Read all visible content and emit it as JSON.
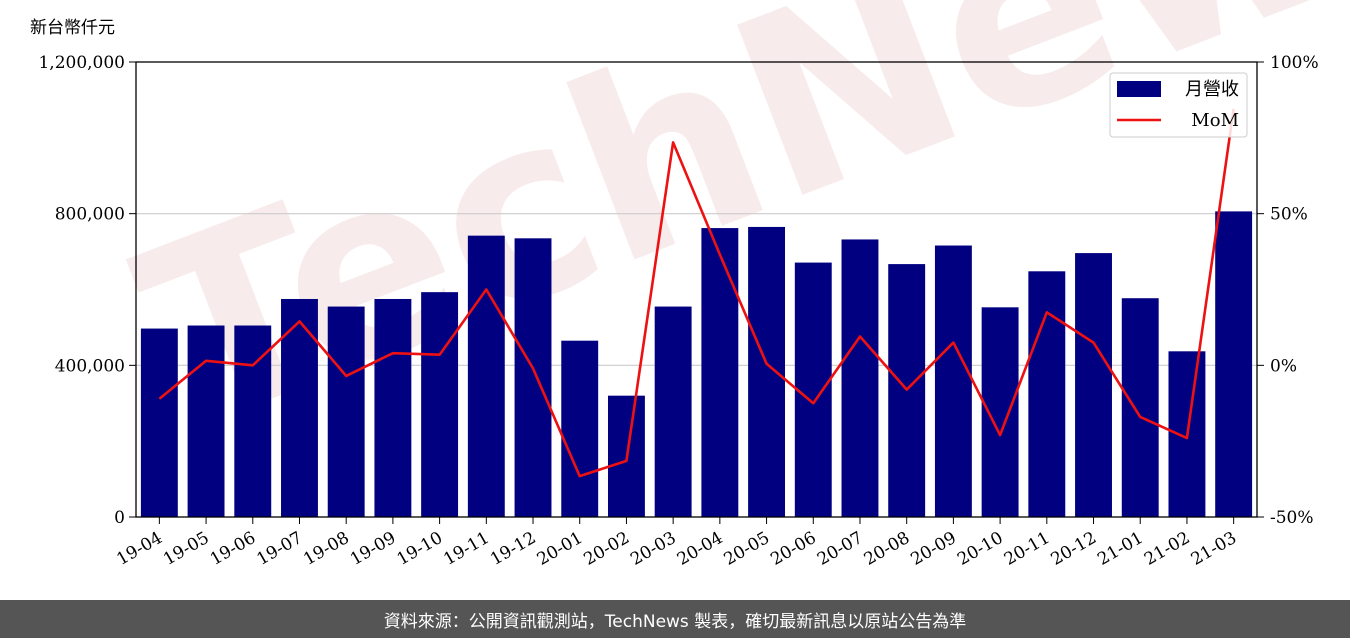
{
  "chart_data": {
    "type": "bar",
    "unit_label": "新台幣仟元",
    "categories": [
      "19-04",
      "19-05",
      "19-06",
      "19-07",
      "19-08",
      "19-09",
      "19-10",
      "19-11",
      "19-12",
      "20-01",
      "20-02",
      "20-03",
      "20-04",
      "20-05",
      "20-06",
      "20-07",
      "20-08",
      "20-09",
      "20-10",
      "20-11",
      "20-12",
      "21-01",
      "21-02",
      "21-03"
    ],
    "series": [
      {
        "name": "月營收",
        "type": "bar",
        "axis": "left",
        "color": "#000080",
        "values": [
          497000,
          505000,
          505000,
          575000,
          555000,
          575000,
          593000,
          742000,
          735000,
          465000,
          320000,
          555000,
          762000,
          765000,
          671000,
          732000,
          667000,
          716000,
          553000,
          648000,
          696000,
          577000,
          437000,
          806000
        ]
      },
      {
        "name": "MoM",
        "type": "line",
        "axis": "right",
        "color": "#ee1111",
        "values": [
          -11,
          1.5,
          0,
          14.5,
          -3.5,
          4,
          3.5,
          25,
          -1,
          -36.5,
          -31.5,
          73.5,
          36.5,
          0.5,
          -12.5,
          9.5,
          -8,
          7.5,
          -23,
          17.5,
          7.5,
          -17,
          -24,
          84.5
        ]
      }
    ],
    "y_left": {
      "min": 0,
      "max": 1200000,
      "ticks": [
        0,
        400000,
        800000,
        1200000
      ],
      "tick_labels": [
        "0",
        "400,000",
        "800,000",
        "1,200,000"
      ]
    },
    "y_right": {
      "min": -50,
      "max": 100,
      "ticks": [
        -50,
        0,
        50,
        100
      ],
      "tick_labels": [
        "-50%",
        "0%",
        "50%",
        "100%"
      ]
    },
    "grid": "horizontal",
    "legend_position": "top-right"
  },
  "watermark": "TechNews",
  "footer": {
    "text": "資料來源：公開資訊觀測站，TechNews 製表，確切最新訊息以原站公告為準"
  }
}
